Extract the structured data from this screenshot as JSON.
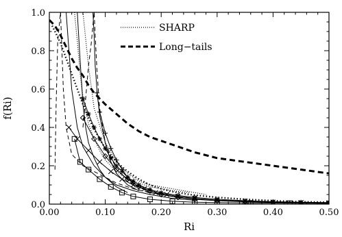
{
  "chart_data": {
    "type": "line",
    "title": "",
    "xlabel": "Ri",
    "ylabel": "f(Ri)",
    "xlim": [
      0.0,
      0.5
    ],
    "ylim": [
      0.0,
      1.0
    ],
    "grid": false,
    "legend_position": "top-right",
    "x_ticks": [
      {
        "value": 0.0,
        "label": "0.00"
      },
      {
        "value": 0.1,
        "label": "0.10"
      },
      {
        "value": 0.2,
        "label": "0.20"
      },
      {
        "value": 0.3,
        "label": "0.30"
      },
      {
        "value": 0.4,
        "label": "0.40"
      },
      {
        "value": 0.5,
        "label": "0.50"
      }
    ],
    "y_ticks": [
      {
        "value": 0.0,
        "label": "0.0"
      },
      {
        "value": 0.2,
        "label": "0.2"
      },
      {
        "value": 0.4,
        "label": "0.4"
      },
      {
        "value": 0.6,
        "label": "0.6"
      },
      {
        "value": 0.8,
        "label": "0.8"
      },
      {
        "value": 1.0,
        "label": "1.0"
      }
    ],
    "legend": [
      {
        "label": "SHARP",
        "style": "dotted"
      },
      {
        "label": "Long−tails",
        "style": "thick-dashed"
      }
    ],
    "series": [
      {
        "style": "thick-dashed",
        "x": [
          0.0,
          0.01,
          0.02,
          0.03,
          0.04,
          0.05,
          0.06,
          0.07,
          0.08,
          0.09,
          0.1,
          0.12,
          0.14,
          0.16,
          0.18,
          0.2,
          0.23,
          0.26,
          0.3,
          0.35,
          0.4,
          0.45,
          0.5
        ],
        "y": [
          0.96,
          0.93,
          0.88,
          0.82,
          0.76,
          0.71,
          0.67,
          0.62,
          0.58,
          0.55,
          0.52,
          0.47,
          0.42,
          0.38,
          0.35,
          0.33,
          0.3,
          0.27,
          0.24,
          0.22,
          0.2,
          0.18,
          0.16
        ]
      },
      {
        "style": "dotted-thick",
        "marker": "none",
        "x": [
          0.005,
          0.01,
          0.02,
          0.03,
          0.04,
          0.05,
          0.06,
          0.07,
          0.08,
          0.09,
          0.1,
          0.12,
          0.14,
          0.16,
          0.18,
          0.2,
          0.22,
          0.25,
          0.3,
          0.35,
          0.4,
          0.45,
          0.5
        ],
        "y": [
          0.93,
          0.9,
          0.84,
          0.76,
          0.68,
          0.6,
          0.52,
          0.45,
          0.39,
          0.34,
          0.29,
          0.22,
          0.17,
          0.13,
          0.1,
          0.08,
          0.065,
          0.05,
          0.035,
          0.025,
          0.018,
          0.012,
          0.01
        ]
      },
      {
        "style": "solid",
        "marker": "x",
        "x": [
          0.035,
          0.05,
          0.07,
          0.09,
          0.11,
          0.13,
          0.15,
          0.17,
          0.19,
          0.21,
          0.23,
          0.26,
          0.3,
          0.35,
          0.4,
          0.45,
          0.5
        ],
        "y": [
          0.4,
          0.34,
          0.28,
          0.22,
          0.17,
          0.13,
          0.1,
          0.08,
          0.06,
          0.05,
          0.04,
          0.03,
          0.02,
          0.015,
          0.01,
          0.008,
          0.006
        ]
      },
      {
        "style": "solid",
        "marker": "square",
        "x": [
          0.045,
          0.055,
          0.07,
          0.09,
          0.11,
          0.13,
          0.15,
          0.18,
          0.22,
          0.26,
          0.3,
          0.36,
          0.43,
          0.5
        ],
        "y": [
          0.34,
          0.22,
          0.18,
          0.13,
          0.09,
          0.06,
          0.04,
          0.025,
          0.015,
          0.01,
          0.008,
          0.006,
          0.005,
          0.004
        ]
      },
      {
        "style": "solid",
        "marker": "plus",
        "x": [
          0.085,
          0.09,
          0.1,
          0.11,
          0.12,
          0.13,
          0.14,
          0.15,
          0.16,
          0.18,
          0.2,
          0.23,
          0.26,
          0.3,
          0.35,
          0.4,
          0.45,
          0.5
        ],
        "y": [
          0.58,
          0.48,
          0.37,
          0.29,
          0.23,
          0.18,
          0.14,
          0.11,
          0.09,
          0.06,
          0.05,
          0.035,
          0.025,
          0.02,
          0.015,
          0.01,
          0.008,
          0.006
        ]
      },
      {
        "style": "solid",
        "marker": "asterisk",
        "x": [
          0.06,
          0.07,
          0.08,
          0.09,
          0.1,
          0.11,
          0.12,
          0.13,
          0.14,
          0.15,
          0.16,
          0.18,
          0.2,
          0.23,
          0.26,
          0.3,
          0.35,
          0.4,
          0.45,
          0.5
        ],
        "y": [
          0.55,
          0.47,
          0.4,
          0.34,
          0.29,
          0.24,
          0.2,
          0.17,
          0.14,
          0.12,
          0.1,
          0.075,
          0.06,
          0.045,
          0.035,
          0.025,
          0.018,
          0.013,
          0.01,
          0.008
        ]
      },
      {
        "style": "solid",
        "marker": "diamond",
        "x": [
          0.06,
          0.08,
          0.1,
          0.12,
          0.14,
          0.16,
          0.18,
          0.2,
          0.23,
          0.26,
          0.3,
          0.35,
          0.4,
          0.45,
          0.5
        ],
        "y": [
          0.45,
          0.34,
          0.25,
          0.18,
          0.13,
          0.09,
          0.07,
          0.05,
          0.035,
          0.025,
          0.018,
          0.012,
          0.008,
          0.006,
          0.004
        ]
      },
      {
        "style": "solid",
        "marker": "none",
        "x": [
          0.05,
          0.052,
          0.055,
          0.058,
          0.06,
          0.065,
          0.07,
          0.08,
          0.09,
          0.1,
          0.12,
          0.14
        ],
        "y": [
          1.0,
          0.9,
          0.75,
          0.62,
          0.52,
          0.4,
          0.32,
          0.24,
          0.18,
          0.14,
          0.09,
          0.06
        ]
      },
      {
        "style": "solid",
        "marker": "none",
        "x": [
          0.078,
          0.08,
          0.082,
          0.085,
          0.09,
          0.1,
          0.11,
          0.12,
          0.14,
          0.16
        ],
        "y": [
          1.0,
          0.88,
          0.72,
          0.6,
          0.46,
          0.32,
          0.22,
          0.16,
          0.1,
          0.07
        ]
      },
      {
        "style": "solid",
        "marker": "none",
        "x": [
          0.03,
          0.035,
          0.04,
          0.05,
          0.06,
          0.08,
          0.1,
          0.12,
          0.15,
          0.18,
          0.22,
          0.26
        ],
        "y": [
          1.0,
          0.8,
          0.6,
          0.4,
          0.3,
          0.2,
          0.14,
          0.1,
          0.07,
          0.05,
          0.03,
          0.02
        ]
      },
      {
        "style": "thin-dashed",
        "marker": "none",
        "x": [
          0.01,
          0.012,
          0.015,
          0.02,
          0.025,
          0.03,
          0.04,
          0.06,
          0.08,
          0.1,
          0.12,
          0.15,
          0.18,
          0.22,
          0.26
        ],
        "y": [
          0.18,
          0.5,
          0.85,
          1.0,
          0.6,
          0.4,
          0.26,
          0.2,
          0.17,
          0.14,
          0.11,
          0.08,
          0.06,
          0.04,
          0.03
        ]
      },
      {
        "style": "thin-dashed",
        "marker": "none",
        "x": [
          0.06,
          0.065,
          0.07,
          0.075,
          0.08,
          0.085,
          0.09,
          0.1,
          0.12,
          0.15,
          0.18
        ],
        "y": [
          0.4,
          0.55,
          0.72,
          0.84,
          1.0,
          0.7,
          0.5,
          0.32,
          0.18,
          0.1,
          0.07
        ]
      },
      {
        "style": "dotted",
        "marker": "none",
        "x": [
          0.045,
          0.05,
          0.055,
          0.06,
          0.07,
          0.08,
          0.09,
          0.1,
          0.12,
          0.14,
          0.16,
          0.18,
          0.2,
          0.22,
          0.25
        ],
        "y": [
          1.0,
          0.85,
          0.68,
          0.56,
          0.42,
          0.34,
          0.28,
          0.23,
          0.17,
          0.13,
          0.11,
          0.09,
          0.08,
          0.07,
          0.06
        ]
      },
      {
        "style": "dotted",
        "marker": "none",
        "x": [
          0.06,
          0.07,
          0.08,
          0.1,
          0.12,
          0.14,
          0.16,
          0.18,
          0.2,
          0.24,
          0.28
        ],
        "y": [
          1.0,
          0.72,
          0.5,
          0.32,
          0.22,
          0.16,
          0.12,
          0.1,
          0.09,
          0.07,
          0.05
        ]
      }
    ]
  }
}
